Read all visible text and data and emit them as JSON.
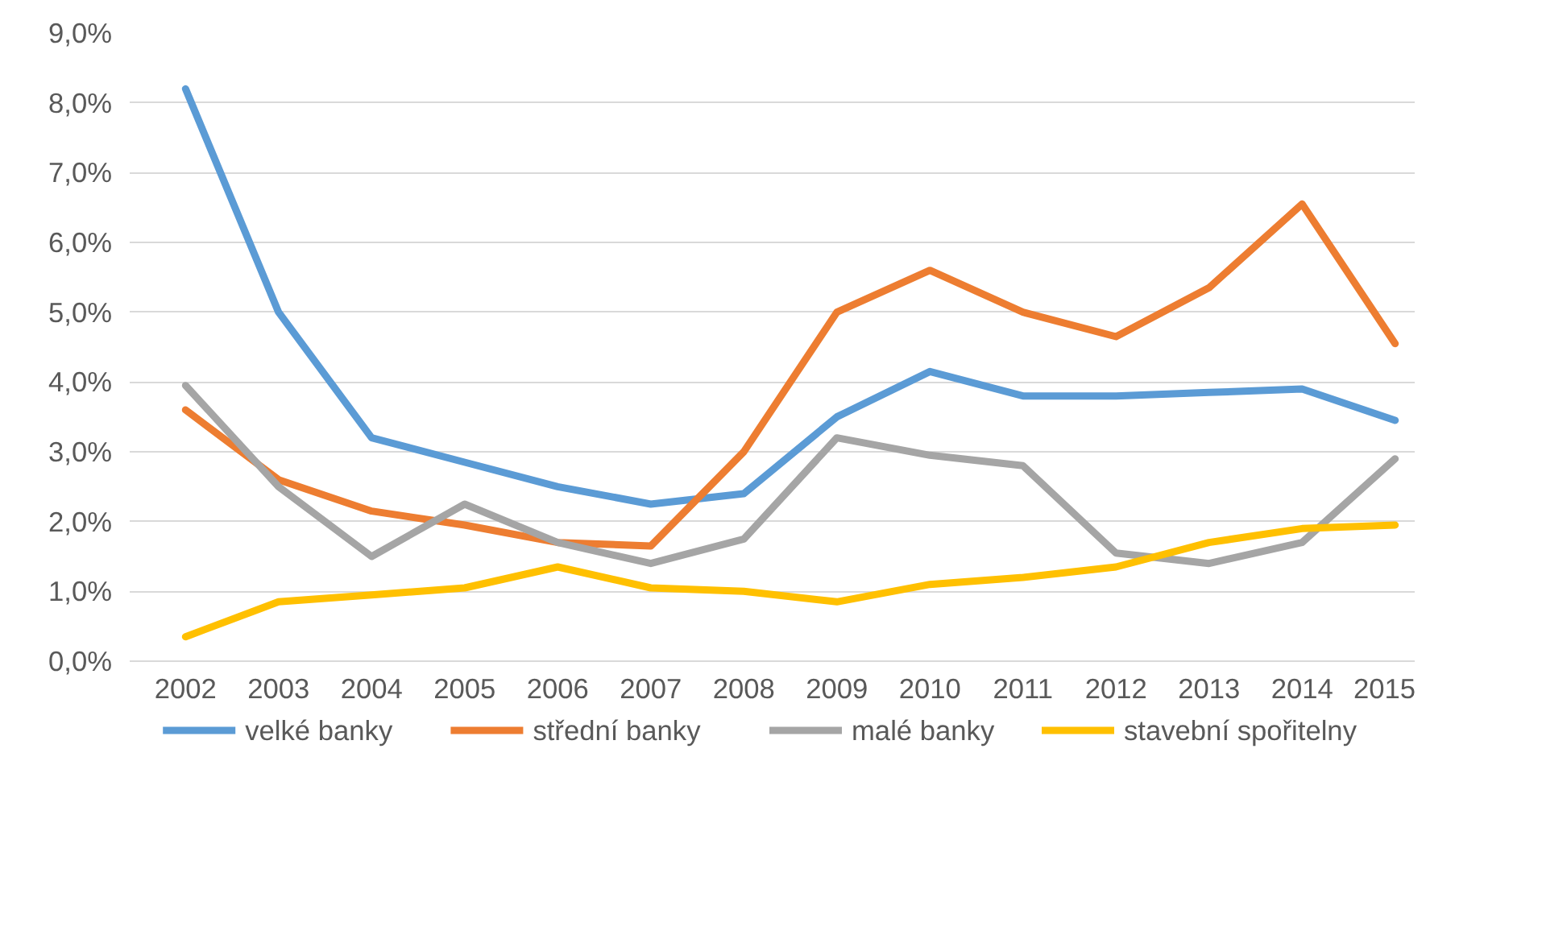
{
  "chart_data": {
    "type": "line",
    "categories": [
      "2002",
      "2003",
      "2004",
      "2005",
      "2006",
      "2007",
      "2008",
      "2009",
      "2010",
      "2011",
      "2012",
      "2013",
      "2014",
      "2015"
    ],
    "series": [
      {
        "name": "velké banky",
        "color": "#5b9bd5",
        "values": [
          8.2,
          5.0,
          3.2,
          2.85,
          2.5,
          2.25,
          2.4,
          3.5,
          4.15,
          3.8,
          3.8,
          3.85,
          3.9,
          3.45
        ]
      },
      {
        "name": "střední banky",
        "color": "#ed7d31",
        "values": [
          3.6,
          2.6,
          2.15,
          1.95,
          1.7,
          1.65,
          3.0,
          5.0,
          5.6,
          5.0,
          4.65,
          5.35,
          6.55,
          4.55
        ]
      },
      {
        "name": "malé banky",
        "color": "#a5a5a5",
        "values": [
          3.95,
          2.5,
          1.5,
          2.25,
          1.7,
          1.4,
          1.75,
          3.2,
          2.95,
          2.8,
          1.55,
          1.4,
          1.7,
          2.9
        ]
      },
      {
        "name": "stavební spořitelny",
        "color": "#ffc000",
        "values": [
          0.35,
          0.85,
          0.95,
          1.05,
          1.35,
          1.05,
          1.0,
          0.85,
          1.1,
          1.2,
          1.35,
          1.7,
          1.9,
          1.95
        ]
      }
    ],
    "ylim": [
      0,
      9
    ],
    "yticks": [
      {
        "value": 0,
        "label": "0,0%"
      },
      {
        "value": 1,
        "label": "1,0%"
      },
      {
        "value": 2,
        "label": "2,0%"
      },
      {
        "value": 3,
        "label": "3,0%"
      },
      {
        "value": 4,
        "label": "4,0%"
      },
      {
        "value": 5,
        "label": "5,0%"
      },
      {
        "value": 6,
        "label": "6,0%"
      },
      {
        "value": 7,
        "label": "7,0%"
      },
      {
        "value": 8,
        "label": "8,0%"
      },
      {
        "value": 9,
        "label": "9,0%"
      }
    ],
    "grid": "y",
    "legend": "bottom",
    "marker": "none",
    "line_style": "solid"
  }
}
